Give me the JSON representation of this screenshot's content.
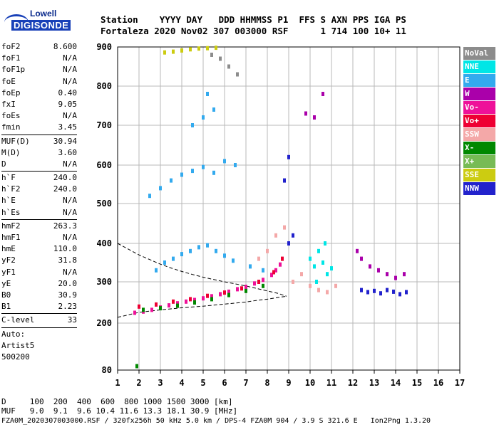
{
  "logo": {
    "top": "Lowell",
    "bottom": "DIGISONDE"
  },
  "header": {
    "line1": "Station    YYYY DAY   DDD HHMMSS P1  FFS S AXN PPS IGA PS",
    "line2": "Fortaleza 2020 Nov02 307 003000 RSF      1 714 100 10+ 11"
  },
  "params": [
    {
      "k": "foF2",
      "v": "8.600"
    },
    {
      "k": "foF1",
      "v": "N/A"
    },
    {
      "k": "foF1p",
      "v": "N/A"
    },
    {
      "k": "foE",
      "v": "N/A"
    },
    {
      "k": "foEp",
      "v": "0.40"
    },
    {
      "k": "fxI",
      "v": "9.05"
    },
    {
      "k": "foEs",
      "v": "N/A"
    },
    {
      "k": "fmin",
      "v": "3.45"
    },
    {
      "sep": true
    },
    {
      "k": "MUF(D)",
      "v": "30.94"
    },
    {
      "k": "M(D)",
      "v": "3.60"
    },
    {
      "k": "D",
      "v": "N/A"
    },
    {
      "sep": true
    },
    {
      "k": "h`F",
      "v": "240.0"
    },
    {
      "k": "h`F2",
      "v": "240.0"
    },
    {
      "k": "h`E",
      "v": "N/A"
    },
    {
      "k": "h`Es",
      "v": "N/A"
    },
    {
      "sep": true
    },
    {
      "k": "hmF2",
      "v": "263.3"
    },
    {
      "k": "hmF1",
      "v": "N/A"
    },
    {
      "k": "hmE",
      "v": "110.0"
    },
    {
      "k": "yF2",
      "v": "31.8"
    },
    {
      "k": "yF1",
      "v": "N/A"
    },
    {
      "k": "yE",
      "v": "20.0"
    },
    {
      "k": "B0",
      "v": "30.9"
    },
    {
      "k": "B1",
      "v": "2.23"
    },
    {
      "sep": true
    },
    {
      "k": "C-level",
      "v": "33"
    },
    {
      "sep": true
    },
    {
      "k": "Auto:",
      "v": ""
    },
    {
      "k": "Artist5",
      "v": ""
    },
    {
      "k": "500200",
      "v": ""
    }
  ],
  "legend": [
    {
      "label": "NoVal",
      "color": "#8c8c8c"
    },
    {
      "label": "NNE",
      "color": "#00e6e6"
    },
    {
      "label": "E",
      "color": "#33aaee"
    },
    {
      "label": "W",
      "color": "#aa00aa"
    },
    {
      "label": "Vo-",
      "color": "#ee1199"
    },
    {
      "label": "Vo+",
      "color": "#ee0033"
    },
    {
      "label": "SSW",
      "color": "#f4a8a8"
    },
    {
      "label": "X-",
      "color": "#008800"
    },
    {
      "label": "X+",
      "color": "#77bb55"
    },
    {
      "label": "SSE",
      "color": "#cccc11"
    },
    {
      "label": "NNW",
      "color": "#2222cc"
    }
  ],
  "footer": {
    "d_row": "D     100  200  400  600  800 1000 1500 3000 [km]",
    "muf_row": "MUF   9.0  9.1  9.6 10.4 11.6 13.3 18.1 30.9 [MHz]",
    "info": "FZA0M_2020307003000.RSF / 320fx256h 50 kHz 5.0 km / DPS-4 FZA0M 904 / 3.9 S 321.6 E   Ion2Png 1.3.20"
  },
  "chart_data": {
    "type": "scatter",
    "xlim": [
      1,
      17
    ],
    "ylim": [
      80,
      900
    ],
    "x_ticks": [
      1,
      2,
      3,
      4,
      5,
      6,
      7,
      8,
      9,
      10,
      11,
      12,
      13,
      14,
      15,
      16,
      17
    ],
    "y_ticks": [
      80,
      200,
      300,
      400,
      500,
      600,
      700,
      800,
      900
    ],
    "grid": true,
    "series": [
      {
        "name": "F2 O-trace (Vo-)",
        "color": "#ee1199",
        "points": [
          [
            1.8,
            225
          ],
          [
            2.2,
            228
          ],
          [
            2.6,
            232
          ],
          [
            3.0,
            238
          ],
          [
            3.4,
            243
          ],
          [
            3.8,
            248
          ],
          [
            4.2,
            252
          ],
          [
            4.6,
            256
          ],
          [
            5.0,
            260
          ],
          [
            5.4,
            265
          ],
          [
            5.8,
            270
          ],
          [
            6.2,
            276
          ],
          [
            6.6,
            282
          ],
          [
            7.0,
            288
          ],
          [
            7.4,
            296
          ],
          [
            7.8,
            305
          ],
          [
            8.2,
            318
          ],
          [
            8.4,
            330
          ],
          [
            8.6,
            345
          ]
        ]
      },
      {
        "name": "F2 O-trace (Vo+)",
        "color": "#ee0033",
        "points": [
          [
            2.0,
            240
          ],
          [
            2.8,
            245
          ],
          [
            3.6,
            252
          ],
          [
            4.4,
            258
          ],
          [
            5.2,
            266
          ],
          [
            6.0,
            274
          ],
          [
            6.8,
            284
          ],
          [
            7.6,
            300
          ],
          [
            8.3,
            325
          ],
          [
            8.7,
            360
          ],
          [
            9.0,
            400
          ]
        ]
      },
      {
        "name": "E echoes",
        "color": "#33aaee",
        "points": [
          [
            2.8,
            330
          ],
          [
            3.2,
            350
          ],
          [
            3.6,
            360
          ],
          [
            4.0,
            372
          ],
          [
            4.4,
            380
          ],
          [
            4.8,
            390
          ],
          [
            5.2,
            395
          ],
          [
            5.6,
            380
          ],
          [
            6.0,
            368
          ],
          [
            6.4,
            355
          ],
          [
            7.2,
            340
          ],
          [
            7.8,
            330
          ],
          [
            2.5,
            520
          ],
          [
            3.0,
            540
          ],
          [
            3.5,
            560
          ],
          [
            4.0,
            575
          ],
          [
            4.5,
            585
          ],
          [
            5.0,
            595
          ],
          [
            5.5,
            580
          ],
          [
            6.0,
            610
          ],
          [
            6.5,
            600
          ],
          [
            4.5,
            700
          ],
          [
            5.0,
            720
          ],
          [
            5.5,
            740
          ],
          [
            5.2,
            780
          ]
        ]
      },
      {
        "name": "NNE echoes",
        "color": "#00e6e6",
        "points": [
          [
            10.0,
            360
          ],
          [
            10.2,
            340
          ],
          [
            10.4,
            380
          ],
          [
            10.6,
            350
          ],
          [
            10.8,
            320
          ],
          [
            11.0,
            335
          ],
          [
            10.3,
            300
          ],
          [
            10.7,
            400
          ]
        ]
      },
      {
        "name": "SSW echoes",
        "color": "#f4a8a8",
        "points": [
          [
            7.6,
            360
          ],
          [
            8.0,
            380
          ],
          [
            8.4,
            420
          ],
          [
            8.8,
            440
          ],
          [
            9.2,
            300
          ],
          [
            9.6,
            320
          ],
          [
            10.0,
            290
          ],
          [
            10.4,
            280
          ],
          [
            10.8,
            275
          ],
          [
            11.2,
            290
          ]
        ]
      },
      {
        "name": "W echoes",
        "color": "#aa00aa",
        "points": [
          [
            12.2,
            380
          ],
          [
            12.4,
            360
          ],
          [
            12.8,
            340
          ],
          [
            13.2,
            330
          ],
          [
            13.6,
            320
          ],
          [
            14.0,
            310
          ],
          [
            14.4,
            320
          ],
          [
            9.8,
            730
          ],
          [
            10.2,
            720
          ],
          [
            10.6,
            780
          ]
        ]
      },
      {
        "name": "NNW echoes",
        "color": "#2222cc",
        "points": [
          [
            12.4,
            280
          ],
          [
            12.7,
            275
          ],
          [
            13.0,
            278
          ],
          [
            13.3,
            272
          ],
          [
            13.6,
            280
          ],
          [
            13.9,
            276
          ],
          [
            14.2,
            270
          ],
          [
            14.5,
            275
          ],
          [
            9.0,
            400
          ],
          [
            9.2,
            420
          ],
          [
            8.8,
            560
          ],
          [
            9.0,
            620
          ]
        ]
      },
      {
        "name": "X- echoes",
        "color": "#008800",
        "points": [
          [
            2.2,
            232
          ],
          [
            3.0,
            236
          ],
          [
            3.8,
            242
          ],
          [
            4.6,
            250
          ],
          [
            5.4,
            258
          ],
          [
            6.2,
            268
          ],
          [
            7.0,
            278
          ],
          [
            7.8,
            290
          ],
          [
            1.9,
            90
          ]
        ]
      },
      {
        "name": "SSE echoes",
        "color": "#cccc11",
        "points": [
          [
            3.2,
            886
          ],
          [
            3.6,
            888
          ],
          [
            4.0,
            891
          ],
          [
            4.4,
            894
          ],
          [
            4.8,
            896
          ],
          [
            5.2,
            897
          ],
          [
            5.6,
            898
          ]
        ]
      },
      {
        "name": "NoVal",
        "color": "#8c8c8c",
        "points": [
          [
            5.4,
            880
          ],
          [
            5.8,
            870
          ],
          [
            6.2,
            850
          ],
          [
            6.6,
            830
          ]
        ]
      }
    ],
    "model_profile_left": [
      [
        1.0,
        400
      ],
      [
        1.5,
        385
      ],
      [
        2.0,
        370
      ],
      [
        2.5,
        358
      ],
      [
        3.0,
        346
      ],
      [
        3.5,
        336
      ],
      [
        4.0,
        327
      ],
      [
        4.5,
        319
      ],
      [
        5.0,
        312
      ],
      [
        5.5,
        306
      ],
      [
        6.0,
        300
      ],
      [
        6.5,
        295
      ],
      [
        7.0,
        290
      ],
      [
        7.5,
        284
      ],
      [
        8.0,
        278
      ],
      [
        8.5,
        272
      ],
      [
        8.9,
        265
      ]
    ],
    "model_profile_bottom": [
      [
        1.0,
        214
      ],
      [
        1.5,
        220
      ],
      [
        2.0,
        226
      ],
      [
        3.0,
        232
      ],
      [
        4.0,
        237
      ],
      [
        5.0,
        241
      ],
      [
        6.0,
        246
      ],
      [
        7.0,
        251
      ],
      [
        7.5,
        255
      ],
      [
        8.0,
        258
      ],
      [
        8.5,
        262
      ],
      [
        8.9,
        265
      ]
    ]
  }
}
